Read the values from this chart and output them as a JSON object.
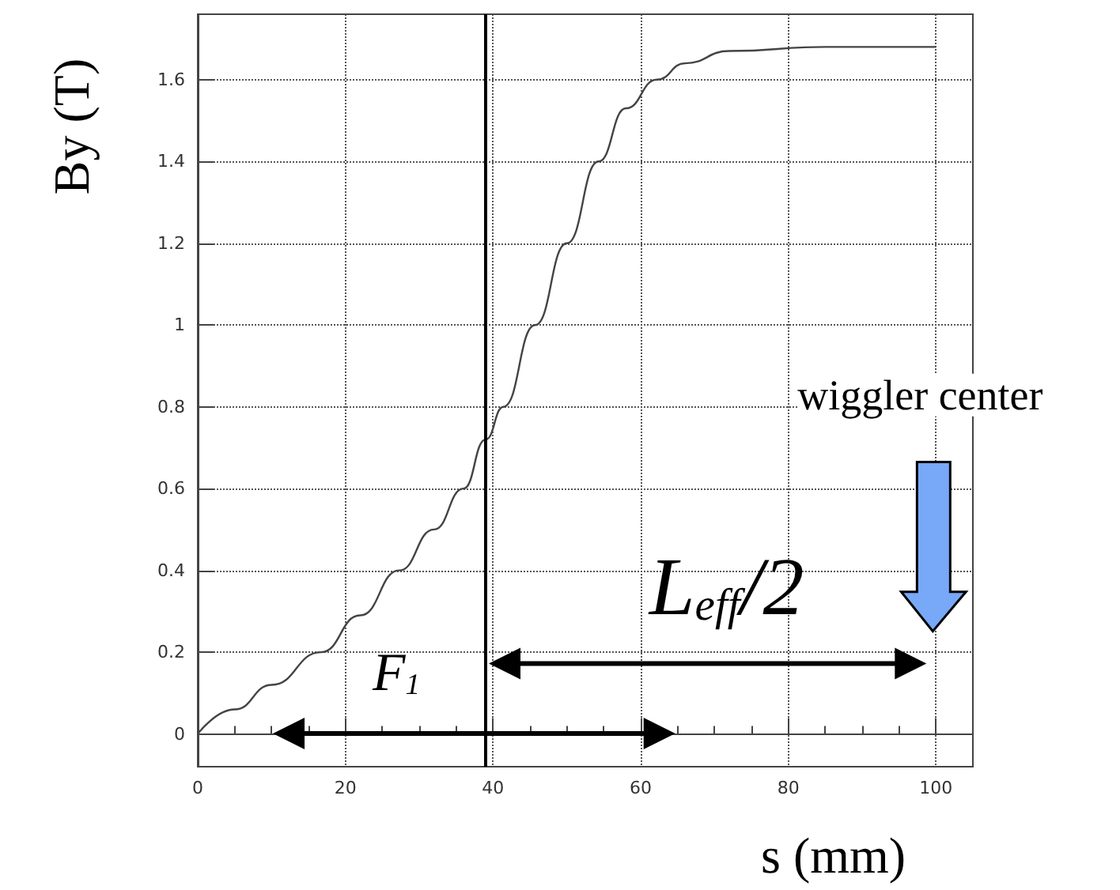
{
  "chart_data": {
    "type": "line",
    "xlabel": "s (mm)",
    "ylabel": "By (T)",
    "x": [
      0,
      5,
      10,
      16.7,
      22,
      27.3,
      32,
      36,
      39,
      41.4,
      45.7,
      50,
      54.3,
      58,
      62.2,
      66,
      72,
      85,
      100
    ],
    "series": [
      {
        "color": "#444444",
        "values": [
          0,
          0.06,
          0.12,
          0.2,
          0.29,
          0.4,
          0.5,
          0.6,
          0.72,
          0.8,
          1.0,
          1.2,
          1.4,
          1.53,
          1.6,
          1.64,
          1.67,
          1.68,
          1.68
        ]
      }
    ],
    "xlim": [
      0,
      105
    ],
    "ylim": [
      -0.08,
      1.76
    ],
    "xticks": [
      0,
      20,
      40,
      60,
      80,
      100
    ],
    "yticks": [
      0,
      0.2,
      0.4,
      0.6,
      0.8,
      1,
      1.2,
      1.4,
      1.6
    ],
    "grid": true,
    "marker": "none",
    "line_style": "solid",
    "ref_lines": [
      {
        "axis": "x",
        "value": 39,
        "color": "#000000"
      }
    ],
    "annotations": [
      "F$_{1}$",
      "L$_{eff}$/2",
      "wiggler center"
    ]
  }
}
